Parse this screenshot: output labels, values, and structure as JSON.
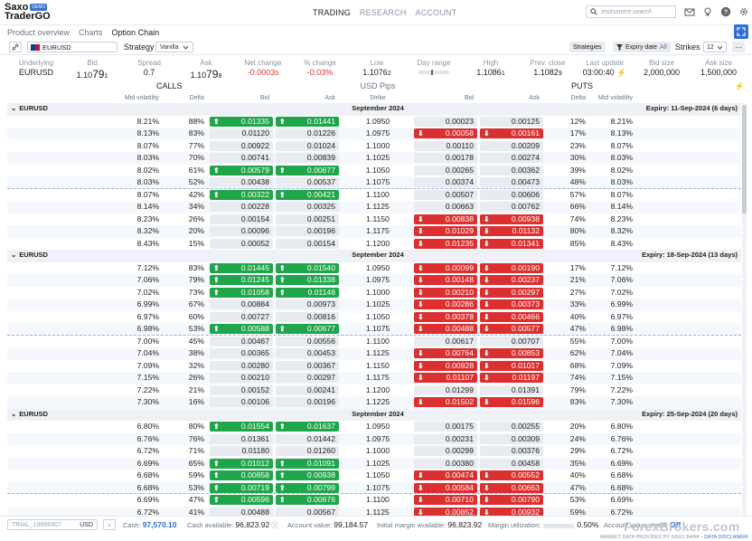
{
  "app": {
    "brand_line1": "Saxo",
    "brand_badge": "DEMO",
    "brand_line2": "TraderGO"
  },
  "nav": {
    "items": [
      "TRADING",
      "RESEARCH",
      "ACCOUNT"
    ],
    "active": "TRADING"
  },
  "search": {
    "placeholder": "Instrument search"
  },
  "subnav": {
    "items": [
      "Product overview",
      "Charts",
      "Option Chain"
    ],
    "active": "Option Chain"
  },
  "toolbar": {
    "instrument": "EURUSD",
    "strategy_label": "Strategy",
    "strategy_value": "Vanilla",
    "strategies_button": "Strategies",
    "expiry_label": "Expiry date",
    "expiry_value": "All",
    "strikes_label": "Strikes",
    "strikes_value": "12"
  },
  "quote": {
    "underlying_h": "Underlying",
    "underlying": "EURUSD",
    "bid_h": "Bid",
    "bid_pre": "1.10",
    "bid_big": "79",
    "bid_pip": "1",
    "spread_h": "Spread",
    "spread": "0.7",
    "ask_h": "Ask",
    "ask_pre": "1.10",
    "ask_big": "79",
    "ask_pip": "8",
    "net_h": "Net change",
    "net": "-0.0003",
    "net_pip": "5",
    "pct_h": "% change",
    "pct": "-0.03%",
    "low_h": "Low",
    "low": "1.1076",
    "low_pip": "2",
    "range_h": "Day range",
    "high_h": "High",
    "high": "1.1086",
    "high_pip": "1",
    "prev_h": "Prev. close",
    "prev": "1.1082",
    "prev_pip": "9",
    "last_h": "Last update",
    "last": "03:00:40",
    "bidsize_h": "Bid size",
    "bidsize": "2,000,000",
    "asksize_h": "Ask size",
    "asksize": "1,500,000"
  },
  "section": {
    "calls": "CALLS",
    "pips": "USD Pips",
    "puts": "PUTS"
  },
  "columns": {
    "mv": "Mid volatility",
    "delta": "Delta",
    "bid": "Bid",
    "ask": "Ask",
    "strike": "Strike"
  },
  "groups": [
    {
      "instrument": "EURUSD",
      "month": "September 2024",
      "expiry": "Expiry: 11-Sep-2024 (6 days)",
      "rows": [
        {
          "mvl": "8.21%",
          "dl": "88%",
          "bidl": "0.01335",
          "bl": "up",
          "askl": "0.01441",
          "al": "up",
          "strike": "1.0950",
          "bidr": "0.00023",
          "br": "",
          "askr": "0.00125",
          "ar": "",
          "dr": "12%",
          "mvr": "8.21%"
        },
        {
          "mvl": "8.13%",
          "dl": "83%",
          "bidl": "0.01120",
          "bl": "",
          "askl": "0.01226",
          "al": "",
          "strike": "1.0975",
          "bidr": "0.00058",
          "br": "dn",
          "askr": "0.00161",
          "ar": "dn",
          "dr": "17%",
          "mvr": "8.13%"
        },
        {
          "mvl": "8.07%",
          "dl": "77%",
          "bidl": "0.00922",
          "bl": "",
          "askl": "0.01024",
          "al": "",
          "strike": "1.1000",
          "bidr": "0.00110",
          "br": "",
          "askr": "0.00209",
          "ar": "",
          "dr": "23%",
          "mvr": "8.07%"
        },
        {
          "mvl": "8.03%",
          "dl": "70%",
          "bidl": "0.00741",
          "bl": "",
          "askl": "0.00839",
          "al": "",
          "strike": "1.1025",
          "bidr": "0.00178",
          "br": "",
          "askr": "0.00274",
          "ar": "",
          "dr": "30%",
          "mvr": "8.03%"
        },
        {
          "mvl": "8.02%",
          "dl": "61%",
          "bidl": "0.00579",
          "bl": "up",
          "askl": "0.00677",
          "al": "up",
          "strike": "1.1050",
          "bidr": "0.00265",
          "br": "",
          "askr": "0.00362",
          "ar": "",
          "dr": "39%",
          "mvr": "8.02%"
        },
        {
          "mvl": "8.03%",
          "dl": "52%",
          "bidl": "0.00438",
          "bl": "",
          "askl": "0.00537",
          "al": "",
          "strike": "1.1075",
          "bidr": "0.00374",
          "br": "",
          "askr": "0.00473",
          "ar": "",
          "dr": "48%",
          "mvr": "8.03%",
          "atm": true
        },
        {
          "mvl": "8.07%",
          "dl": "42%",
          "bidl": "0.00322",
          "bl": "up",
          "askl": "0.00421",
          "al": "up",
          "strike": "1.1100",
          "bidr": "0.00507",
          "br": "",
          "askr": "0.00606",
          "ar": "",
          "dr": "57%",
          "mvr": "8.07%"
        },
        {
          "mvl": "8.14%",
          "dl": "34%",
          "bidl": "0.00228",
          "bl": "",
          "askl": "0.00325",
          "al": "",
          "strike": "1.1125",
          "bidr": "0.00663",
          "br": "",
          "askr": "0.00762",
          "ar": "",
          "dr": "66%",
          "mvr": "8.14%"
        },
        {
          "mvl": "8.23%",
          "dl": "26%",
          "bidl": "0.00154",
          "bl": "",
          "askl": "0.00251",
          "al": "",
          "strike": "1.1150",
          "bidr": "0.00838",
          "br": "dn",
          "askr": "0.00938",
          "ar": "dn",
          "dr": "74%",
          "mvr": "8.23%"
        },
        {
          "mvl": "8.32%",
          "dl": "20%",
          "bidl": "0.00096",
          "bl": "",
          "askl": "0.00196",
          "al": "",
          "strike": "1.1175",
          "bidr": "0.01029",
          "br": "dn",
          "askr": "0.01132",
          "ar": "dn",
          "dr": "80%",
          "mvr": "8.32%"
        },
        {
          "mvl": "8.43%",
          "dl": "15%",
          "bidl": "0.00052",
          "bl": "",
          "askl": "0.00154",
          "al": "",
          "strike": "1.1200",
          "bidr": "0.01235",
          "br": "dn",
          "askr": "0.01341",
          "ar": "dn",
          "dr": "85%",
          "mvr": "8.43%"
        }
      ]
    },
    {
      "instrument": "EURUSD",
      "month": "September 2024",
      "expiry": "Expiry: 18-Sep-2024 (13 days)",
      "rows": [
        {
          "mvl": "7.12%",
          "dl": "83%",
          "bidl": "0.01445",
          "bl": "up",
          "askl": "0.01540",
          "al": "up",
          "strike": "1.0950",
          "bidr": "0.00099",
          "br": "dn",
          "askr": "0.00190",
          "ar": "dn",
          "dr": "17%",
          "mvr": "7.12%"
        },
        {
          "mvl": "7.06%",
          "dl": "79%",
          "bidl": "0.01245",
          "bl": "up",
          "askl": "0.01338",
          "al": "up",
          "strike": "1.0975",
          "bidr": "0.00148",
          "br": "dn",
          "askr": "0.00237",
          "ar": "dn",
          "dr": "21%",
          "mvr": "7.06%"
        },
        {
          "mvl": "7.02%",
          "dl": "73%",
          "bidl": "0.01058",
          "bl": "up",
          "askl": "0.01148",
          "al": "up",
          "strike": "1.1000",
          "bidr": "0.00210",
          "br": "dn",
          "askr": "0.00297",
          "ar": "dn",
          "dr": "27%",
          "mvr": "7.02%"
        },
        {
          "mvl": "6.99%",
          "dl": "67%",
          "bidl": "0.00884",
          "bl": "",
          "askl": "0.00973",
          "al": "",
          "strike": "1.1025",
          "bidr": "0.00286",
          "br": "dn",
          "askr": "0.00373",
          "ar": "dn",
          "dr": "33%",
          "mvr": "6.99%"
        },
        {
          "mvl": "6.97%",
          "dl": "60%",
          "bidl": "0.00727",
          "bl": "",
          "askl": "0.00816",
          "al": "",
          "strike": "1.1050",
          "bidr": "0.00378",
          "br": "dn",
          "askr": "0.00466",
          "ar": "dn",
          "dr": "40%",
          "mvr": "6.97%"
        },
        {
          "mvl": "6.98%",
          "dl": "53%",
          "bidl": "0.00588",
          "bl": "up",
          "askl": "0.00677",
          "al": "up",
          "strike": "1.1075",
          "bidr": "0.00488",
          "br": "dn",
          "askr": "0.00577",
          "ar": "dn",
          "dr": "47%",
          "mvr": "6.98%",
          "atm": true
        },
        {
          "mvl": "7.00%",
          "dl": "45%",
          "bidl": "0.00467",
          "bl": "",
          "askl": "0.00556",
          "al": "",
          "strike": "1.1100",
          "bidr": "0.00617",
          "br": "",
          "askr": "0.00707",
          "ar": "",
          "dr": "55%",
          "mvr": "7.00%"
        },
        {
          "mvl": "7.04%",
          "dl": "38%",
          "bidl": "0.00365",
          "bl": "",
          "askl": "0.00453",
          "al": "",
          "strike": "1.1125",
          "bidr": "0.00764",
          "br": "dn",
          "askr": "0.00853",
          "ar": "dn",
          "dr": "62%",
          "mvr": "7.04%"
        },
        {
          "mvl": "7.09%",
          "dl": "32%",
          "bidl": "0.00280",
          "bl": "",
          "askl": "0.00367",
          "al": "",
          "strike": "1.1150",
          "bidr": "0.00928",
          "br": "dn",
          "askr": "0.01017",
          "ar": "dn",
          "dr": "68%",
          "mvr": "7.09%"
        },
        {
          "mvl": "7.15%",
          "dl": "26%",
          "bidl": "0.00210",
          "bl": "",
          "askl": "0.00297",
          "al": "",
          "strike": "1.1175",
          "bidr": "0.01107",
          "br": "dn",
          "askr": "0.01197",
          "ar": "dn",
          "dr": "74%",
          "mvr": "7.15%"
        },
        {
          "mvl": "7.22%",
          "dl": "21%",
          "bidl": "0.00152",
          "bl": "",
          "askl": "0.00241",
          "al": "",
          "strike": "1.1200",
          "bidr": "0.01299",
          "br": "",
          "askr": "0.01391",
          "ar": "",
          "dr": "79%",
          "mvr": "7.22%"
        },
        {
          "mvl": "7.30%",
          "dl": "16%",
          "bidl": "0.00106",
          "bl": "",
          "askl": "0.00196",
          "al": "",
          "strike": "1.1225",
          "bidr": "0.01502",
          "br": "dn",
          "askr": "0.01596",
          "ar": "dn",
          "dr": "83%",
          "mvr": "7.30%"
        }
      ]
    },
    {
      "instrument": "EURUSD",
      "month": "September 2024",
      "expiry": "Expiry: 25-Sep-2024 (20 days)",
      "rows": [
        {
          "mvl": "6.80%",
          "dl": "80%",
          "bidl": "0.01554",
          "bl": "up",
          "askl": "0.01637",
          "al": "up",
          "strike": "1.0950",
          "bidr": "0.00175",
          "br": "",
          "askr": "0.00255",
          "ar": "",
          "dr": "20%",
          "mvr": "6.80%"
        },
        {
          "mvl": "6.76%",
          "dl": "76%",
          "bidl": "0.01361",
          "bl": "",
          "askl": "0.01442",
          "al": "",
          "strike": "1.0975",
          "bidr": "0.00231",
          "br": "",
          "askr": "0.00309",
          "ar": "",
          "dr": "24%",
          "mvr": "6.76%"
        },
        {
          "mvl": "6.72%",
          "dl": "71%",
          "bidl": "0.01180",
          "bl": "",
          "askl": "0.01260",
          "al": "",
          "strike": "1.1000",
          "bidr": "0.00299",
          "br": "",
          "askr": "0.00376",
          "ar": "",
          "dr": "29%",
          "mvr": "6.72%"
        },
        {
          "mvl": "6.69%",
          "dl": "65%",
          "bidl": "0.01012",
          "bl": "up",
          "askl": "0.01091",
          "al": "up",
          "strike": "1.1025",
          "bidr": "0.00380",
          "br": "",
          "askr": "0.00458",
          "ar": "",
          "dr": "35%",
          "mvr": "6.69%"
        },
        {
          "mvl": "6.68%",
          "dl": "59%",
          "bidl": "0.00858",
          "bl": "up",
          "askl": "0.00938",
          "al": "up",
          "strike": "1.1050",
          "bidr": "0.00474",
          "br": "dn",
          "askr": "0.00552",
          "ar": "dn",
          "dr": "40%",
          "mvr": "6.68%"
        },
        {
          "mvl": "6.68%",
          "dl": "53%",
          "bidl": "0.00719",
          "bl": "up",
          "askl": "0.00799",
          "al": "up",
          "strike": "1.1075",
          "bidr": "0.00584",
          "br": "dn",
          "askr": "0.00663",
          "ar": "dn",
          "dr": "47%",
          "mvr": "6.68%",
          "atm": true
        },
        {
          "mvl": "6.69%",
          "dl": "47%",
          "bidl": "0.00596",
          "bl": "up",
          "askl": "0.00676",
          "al": "up",
          "strike": "1.1100",
          "bidr": "0.00710",
          "br": "dn",
          "askr": "0.00790",
          "ar": "dn",
          "dr": "53%",
          "mvr": "6.69%"
        },
        {
          "mvl": "6.72%",
          "dl": "41%",
          "bidl": "0.00488",
          "bl": "",
          "askl": "0.00567",
          "al": "",
          "strike": "1.1125",
          "bidr": "0.00852",
          "br": "dn",
          "askr": "0.00932",
          "ar": "dn",
          "dr": "59%",
          "mvr": "6.72%"
        }
      ]
    }
  ],
  "footer": {
    "account_id": "TRIAL_19666907",
    "currency": "USD",
    "cash_l": "Cash:",
    "cash": "97,570.10",
    "cash_avail_l": "Cash available:",
    "cash_avail": "96,823.92",
    "acct_value_l": "Account value:",
    "acct_value": "99,184.57",
    "init_margin_l": "Initial margin available:",
    "init_margin": "96,823.92",
    "margin_util_l": "Margin utilization:",
    "margin_util": "0.50%",
    "value_shield_l": "Account value shield:",
    "value_shield": "Off",
    "disclaimer_pre": "MARKET DATA PROVIDED BY SAXO BANK •",
    "disclaimer_link": "DATA DISCLAIMER"
  },
  "watermark": "ForexBrokers.com",
  "colors": {
    "up": "#1fa64a",
    "down": "#dc2f2f",
    "accent": "#2e6fd8"
  }
}
